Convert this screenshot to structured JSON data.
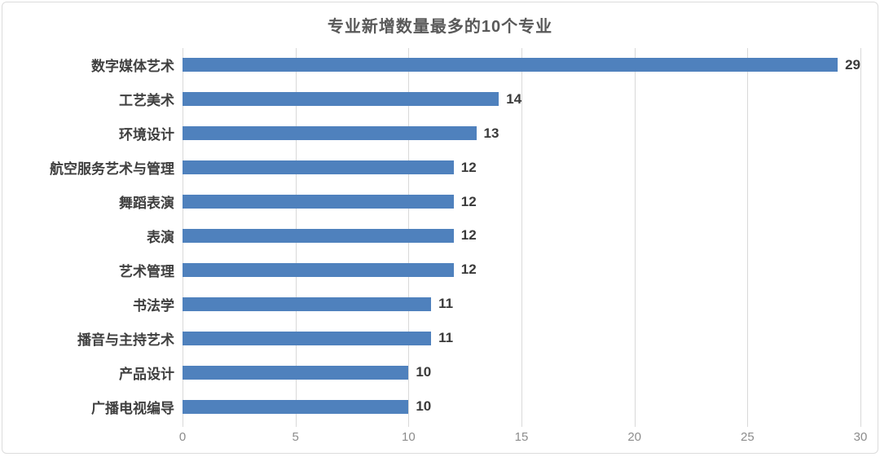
{
  "chart_data": {
    "type": "bar",
    "orientation": "horizontal",
    "title": "专业新增数量最多的10个专业",
    "categories": [
      "数字媒体艺术",
      "工艺美术",
      "环境设计",
      "航空服务艺术与管理",
      "舞蹈表演",
      "表演",
      "艺术管理",
      "书法学",
      "播音与主持艺术",
      "产品设计",
      "广播电视编导"
    ],
    "values": [
      29,
      14,
      13,
      12,
      12,
      12,
      12,
      11,
      11,
      10,
      10
    ],
    "xlabel": "",
    "ylabel": "",
    "xlim": [
      0,
      30
    ],
    "xticks": [
      0,
      5,
      10,
      15,
      20,
      25,
      30
    ],
    "grid": true,
    "legend": "none",
    "data_labels": true,
    "colors": {
      "bar": "#4f81bd",
      "title": "#595959",
      "category_label": "#3f3f3f",
      "value_label": "#3a3a3a",
      "tick_label": "#8c8c8c",
      "gridline": "#d9d9d9",
      "card_border": "#dcdcdc",
      "background": "#ffffff"
    }
  }
}
